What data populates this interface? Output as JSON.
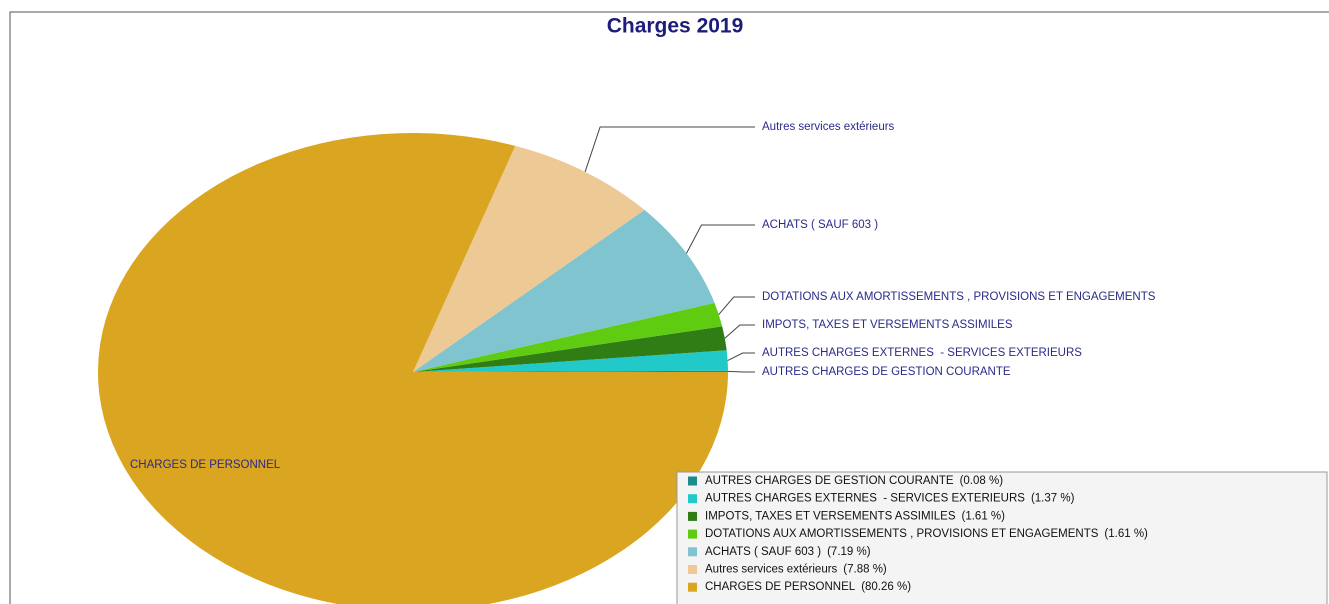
{
  "chart_data": {
    "type": "pie",
    "title": "Charges 2019",
    "categories": [
      "AUTRES CHARGES DE GESTION COURANTE",
      "AUTRES CHARGES EXTERNES  - SERVICES EXTERIEURS",
      "IMPOTS, TAXES ET VERSEMENTS ASSIMILES",
      "DOTATIONS AUX AMORTISSEMENTS , PROVISIONS ET ENGAGEMENTS",
      "ACHATS ( SAUF 603 )",
      "Autres services extérieurs",
      "CHARGES DE PERSONNEL"
    ],
    "values": [
      0.08,
      1.37,
      1.61,
      1.61,
      7.19,
      7.88,
      80.26
    ],
    "value_labels": [
      "(0.08 %)",
      "(1.37 %)",
      "(1.61 %)",
      "(1.61 %)",
      "(7.19 %)",
      "(7.88 %)",
      "(80.26 %)"
    ],
    "colors": [
      "#1b8c8c",
      "#22c9c9",
      "#2f7d14",
      "#5fcc12",
      "#80c4d0",
      "#edc995",
      "#daa520"
    ],
    "legend": "bottom-right"
  }
}
